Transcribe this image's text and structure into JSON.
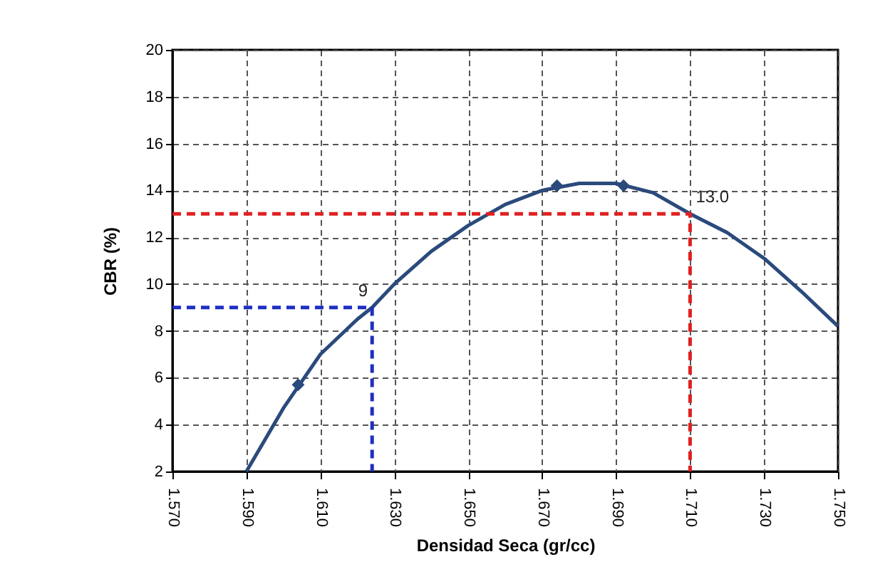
{
  "chart_data": {
    "type": "line",
    "xlabel": "Densidad Seca (gr/cc)",
    "ylabel": "CBR (%)",
    "xlim": [
      1.57,
      1.75
    ],
    "ylim": [
      2,
      20
    ],
    "xticks": [
      {
        "value": 1.57,
        "label": "1.570"
      },
      {
        "value": 1.59,
        "label": "1.590"
      },
      {
        "value": 1.61,
        "label": "1.610"
      },
      {
        "value": 1.63,
        "label": "1.630"
      },
      {
        "value": 1.65,
        "label": "1.650"
      },
      {
        "value": 1.67,
        "label": "1.670"
      },
      {
        "value": 1.69,
        "label": "1.690"
      },
      {
        "value": 1.71,
        "label": "1.710"
      },
      {
        "value": 1.73,
        "label": "1.730"
      },
      {
        "value": 1.75,
        "label": "1.750"
      }
    ],
    "yticks": [
      2,
      4,
      6,
      8,
      10,
      12,
      14,
      16,
      18,
      20
    ],
    "grid": true,
    "series": [
      {
        "type": "line",
        "color": "#2b4a7c",
        "marker": "none",
        "line_style": "solid",
        "x": [
          1.59,
          1.6,
          1.61,
          1.62,
          1.624,
          1.63,
          1.64,
          1.65,
          1.66,
          1.67,
          1.68,
          1.69,
          1.7,
          1.71,
          1.72,
          1.73,
          1.74,
          1.75
        ],
        "values": [
          2.0,
          4.7,
          7.0,
          8.5,
          9.0,
          10.0,
          11.4,
          12.5,
          13.4,
          14.0,
          14.3,
          14.3,
          13.9,
          13.0,
          12.2,
          11.1,
          9.7,
          8.2
        ]
      },
      {
        "type": "scatter",
        "color": "#2b4a7c",
        "marker": "diamond",
        "x": [
          1.604,
          1.674,
          1.692
        ],
        "values": [
          5.7,
          14.2,
          14.2
        ]
      },
      {
        "type": "line",
        "color": "#1f2fc0",
        "marker": "none",
        "line_style": "dashed",
        "x": [
          1.57,
          1.624,
          1.624
        ],
        "values": [
          9,
          9,
          2
        ]
      },
      {
        "type": "line",
        "color": "#e02020",
        "marker": "none",
        "line_style": "dashed",
        "x": [
          1.57,
          1.71,
          1.71
        ],
        "values": [
          13,
          13,
          2
        ]
      }
    ],
    "annotations": [
      {
        "text": "9",
        "x": 1.624,
        "y": 9
      },
      {
        "text": "13.0",
        "x": 1.71,
        "y": 13
      }
    ]
  }
}
